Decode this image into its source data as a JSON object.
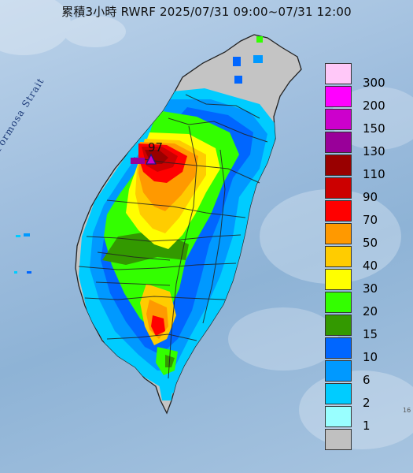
{
  "title": "累積3小時 RWRF 2025/07/31 09:00~07/31 12:00",
  "strait_label": "Formosa Strait",
  "peak_marker": {
    "value": "97",
    "symbol": "triangle-marker"
  },
  "legend": [
    {
      "label": "300",
      "color": "#ffc8f8"
    },
    {
      "label": "200",
      "color": "#ff00ff"
    },
    {
      "label": "150",
      "color": "#cc00cc"
    },
    {
      "label": "130",
      "color": "#990099"
    },
    {
      "label": "110",
      "color": "#990000"
    },
    {
      "label": "90",
      "color": "#cc0000"
    },
    {
      "label": "70",
      "color": "#ff0000"
    },
    {
      "label": "50",
      "color": "#ff9900"
    },
    {
      "label": "40",
      "color": "#ffcc00"
    },
    {
      "label": "30",
      "color": "#ffff00"
    },
    {
      "label": "20",
      "color": "#33ff00"
    },
    {
      "label": "15",
      "color": "#339900"
    },
    {
      "label": "10",
      "color": "#0066ff"
    },
    {
      "label": "6",
      "color": "#0099ff"
    },
    {
      "label": "2",
      "color": "#00ccff"
    },
    {
      "label": "1",
      "color": "#99ffff"
    },
    {
      "label": "",
      "color": "#c0c0c0"
    }
  ],
  "corner_mark": "16"
}
